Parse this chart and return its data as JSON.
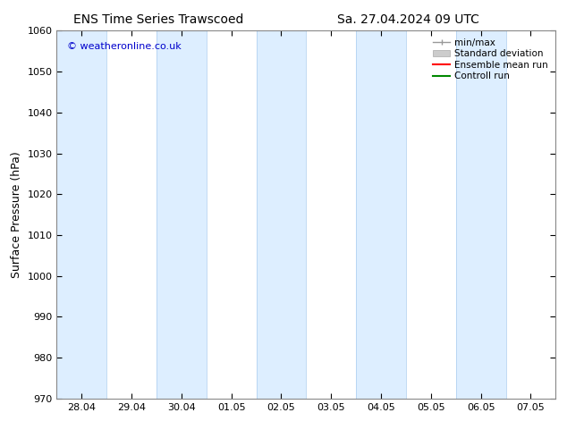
{
  "title_left": "ENS Time Series Trawscoed",
  "title_right": "Sa. 27.04.2024 09 UTC",
  "ylabel": "Surface Pressure (hPa)",
  "ylim": [
    970,
    1060
  ],
  "yticks": [
    970,
    980,
    990,
    1000,
    1010,
    1020,
    1030,
    1040,
    1050,
    1060
  ],
  "xlabels": [
    "28.04",
    "29.04",
    "30.04",
    "01.05",
    "02.05",
    "03.05",
    "04.05",
    "05.05",
    "06.05",
    "07.05"
  ],
  "x_positions": [
    0,
    1,
    2,
    3,
    4,
    5,
    6,
    7,
    8,
    9
  ],
  "shade_color": "#ddeeff",
  "watermark": "© weatheronline.co.uk",
  "watermark_color": "#0000cc",
  "legend_labels": [
    "min/max",
    "Standard deviation",
    "Ensemble mean run",
    "Controll run"
  ],
  "legend_line_colors": [
    "#999999",
    "#bbbbbb",
    "#ff0000",
    "#008800"
  ],
  "background_color": "#ffffff",
  "title_fontsize": 10,
  "axis_fontsize": 9,
  "tick_fontsize": 8,
  "fig_width": 6.34,
  "fig_height": 4.9,
  "dpi": 100
}
